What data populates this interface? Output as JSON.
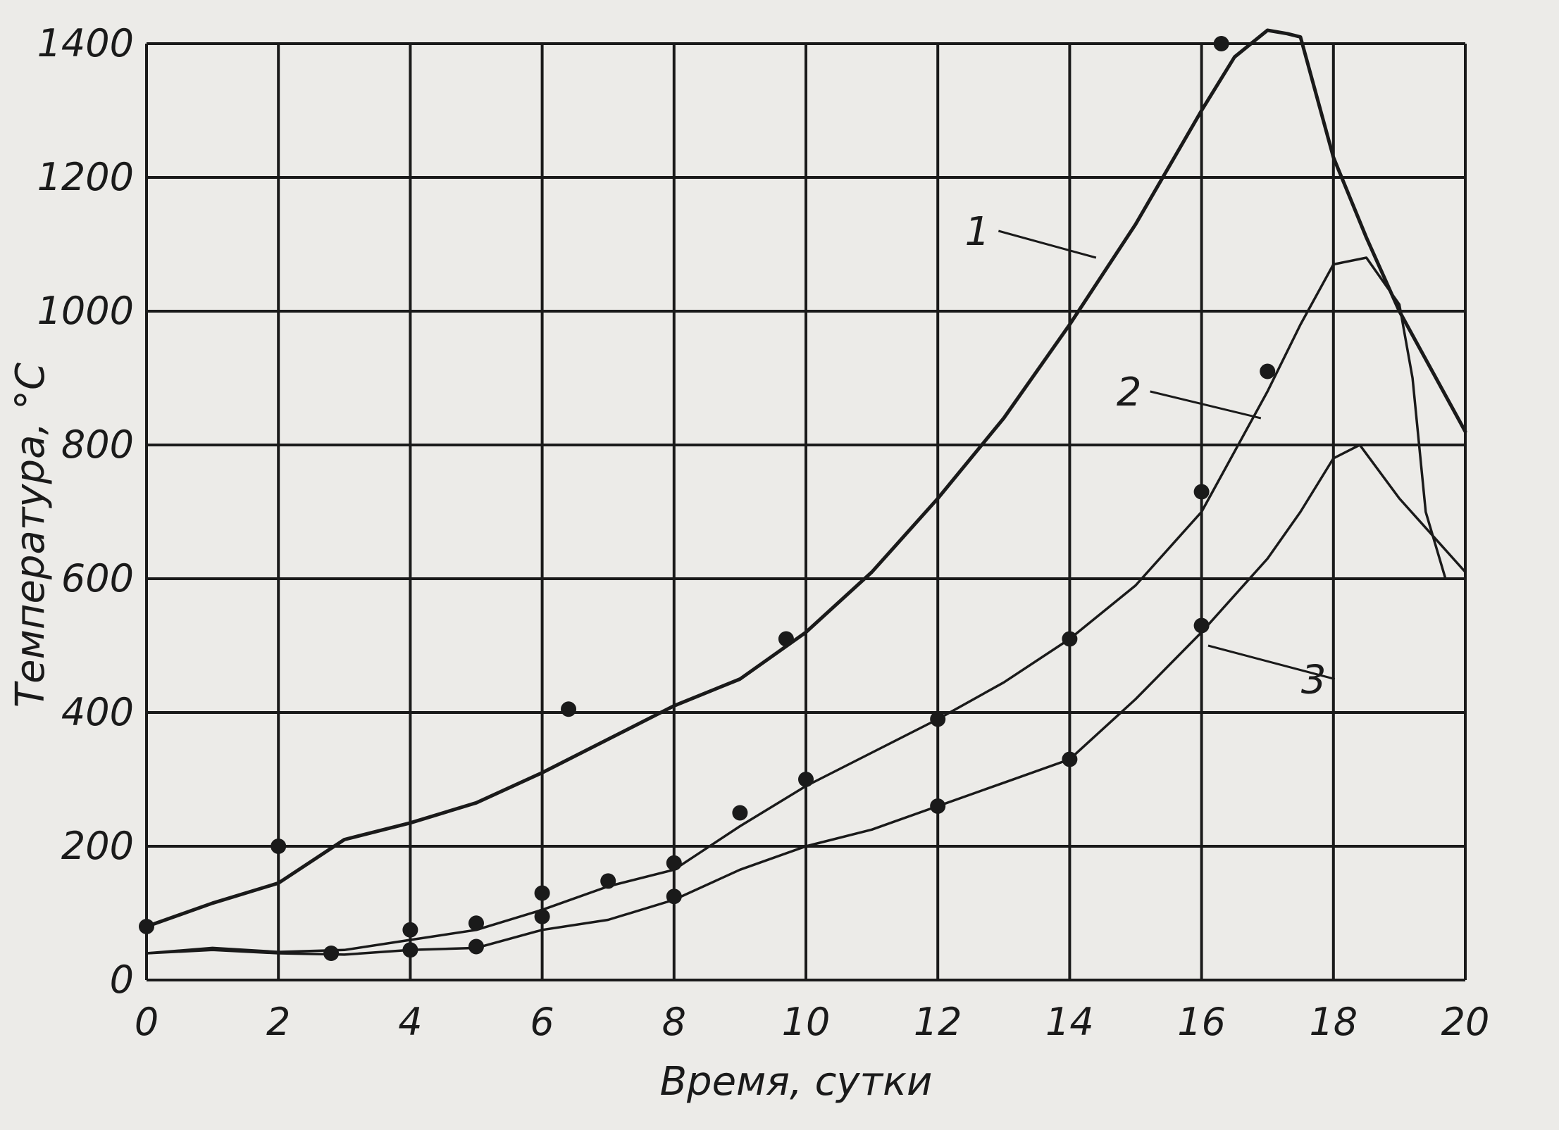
{
  "chart_data": {
    "type": "line",
    "xlabel": "Время, сутки",
    "ylabel": "Температура, °С",
    "xlim": [
      0,
      20
    ],
    "ylim": [
      0,
      1400
    ],
    "xticks": [
      0,
      2,
      4,
      6,
      8,
      10,
      12,
      14,
      16,
      18,
      20
    ],
    "yticks": [
      0,
      200,
      400,
      600,
      800,
      1000,
      1200,
      1400
    ],
    "grid": true,
    "background": "#ecebe8",
    "line_color": "#1a1a1a",
    "series": [
      {
        "name": "1",
        "line": [
          [
            0,
            80
          ],
          [
            1,
            115
          ],
          [
            2,
            145
          ],
          [
            3,
            210
          ],
          [
            4,
            235
          ],
          [
            5,
            265
          ],
          [
            6,
            310
          ],
          [
            7,
            360
          ],
          [
            8,
            410
          ],
          [
            9,
            450
          ],
          [
            10,
            520
          ],
          [
            11,
            610
          ],
          [
            12,
            720
          ],
          [
            13,
            840
          ],
          [
            14,
            980
          ],
          [
            15,
            1130
          ],
          [
            16,
            1300
          ],
          [
            16.5,
            1380
          ],
          [
            17,
            1420
          ],
          [
            17.3,
            1415
          ],
          [
            17.5,
            1410
          ],
          [
            18,
            1230
          ],
          [
            18.5,
            1110
          ],
          [
            19,
            1000
          ],
          [
            19.5,
            910
          ],
          [
            20,
            820
          ]
        ],
        "points": [
          [
            0,
            80
          ],
          [
            2,
            200
          ],
          [
            6.4,
            405
          ],
          [
            9.7,
            510
          ],
          [
            16.3,
            1400
          ]
        ]
      },
      {
        "name": "2",
        "line": [
          [
            0,
            40
          ],
          [
            1,
            48
          ],
          [
            2,
            42
          ],
          [
            3,
            45
          ],
          [
            4,
            60
          ],
          [
            5,
            75
          ],
          [
            6,
            105
          ],
          [
            7,
            140
          ],
          [
            8,
            165
          ],
          [
            9,
            230
          ],
          [
            10,
            290
          ],
          [
            11,
            340
          ],
          [
            12,
            390
          ],
          [
            13,
            445
          ],
          [
            14,
            510
          ],
          [
            15,
            590
          ],
          [
            16,
            700
          ],
          [
            17,
            880
          ],
          [
            17.5,
            980
          ],
          [
            18,
            1070
          ],
          [
            18.5,
            1080
          ],
          [
            19,
            1010
          ],
          [
            19.2,
            900
          ],
          [
            19.4,
            700
          ],
          [
            19.7,
            600
          ]
        ],
        "points": [
          [
            2.8,
            40
          ],
          [
            4,
            75
          ],
          [
            5,
            85
          ],
          [
            6,
            130
          ],
          [
            7,
            148
          ],
          [
            8,
            175
          ],
          [
            9,
            250
          ],
          [
            10,
            300
          ],
          [
            12,
            390
          ],
          [
            14,
            510
          ],
          [
            16,
            730
          ],
          [
            17,
            910
          ]
        ]
      },
      {
        "name": "3",
        "line": [
          [
            0,
            40
          ],
          [
            1,
            45
          ],
          [
            2,
            40
          ],
          [
            3,
            38
          ],
          [
            4,
            45
          ],
          [
            5,
            48
          ],
          [
            6,
            75
          ],
          [
            7,
            90
          ],
          [
            8,
            120
          ],
          [
            9,
            165
          ],
          [
            10,
            200
          ],
          [
            11,
            225
          ],
          [
            12,
            260
          ],
          [
            13,
            295
          ],
          [
            14,
            330
          ],
          [
            15,
            420
          ],
          [
            16,
            520
          ],
          [
            17,
            630
          ],
          [
            17.5,
            700
          ],
          [
            18,
            780
          ],
          [
            18.4,
            800
          ],
          [
            19,
            720
          ],
          [
            20,
            610
          ]
        ],
        "points": [
          [
            4,
            45
          ],
          [
            5,
            50
          ],
          [
            6,
            95
          ],
          [
            8,
            125
          ],
          [
            12,
            260
          ],
          [
            14,
            330
          ],
          [
            16,
            530
          ]
        ]
      }
    ],
    "curve_labels": [
      {
        "text": "1",
        "at": [
          12.6,
          1120
        ],
        "leader_to": [
          14.4,
          1080
        ]
      },
      {
        "text": "2",
        "at": [
          14.9,
          880
        ],
        "leader_to": [
          16.9,
          840
        ]
      },
      {
        "text": "3",
        "at": [
          17.7,
          450
        ],
        "leader_to": [
          16.1,
          500
        ]
      }
    ]
  }
}
